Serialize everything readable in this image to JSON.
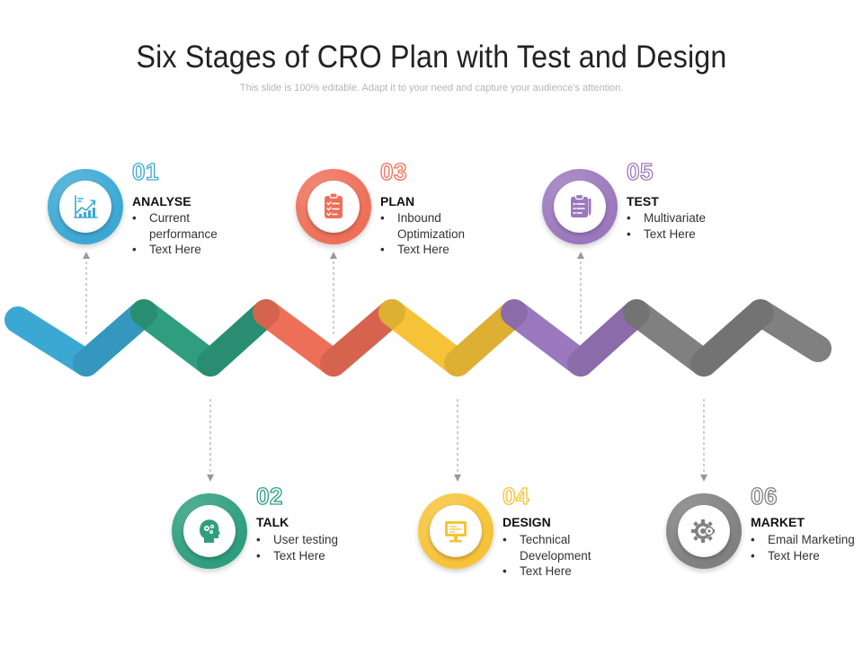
{
  "title": "Six Stages of CRO Plan with Test and Design",
  "subtitle": "This slide is 100% editable. Adapt it to your need and capture your audience's attention.",
  "stages": [
    {
      "number": "01",
      "heading": "ANALYSE",
      "icon": "growth-chart-icon",
      "color": "#3BA8D4",
      "bullets": [
        "Current performance",
        "Text Here"
      ]
    },
    {
      "number": "02",
      "heading": "TALK",
      "icon": "head-gears-icon",
      "color": "#2E9E7E",
      "bullets": [
        "User testing",
        "Text Here"
      ]
    },
    {
      "number": "03",
      "heading": "PLAN",
      "icon": "clipboard-checklist-icon",
      "color": "#EE6F57",
      "bullets": [
        "Inbound Optimization",
        "Text Here"
      ]
    },
    {
      "number": "04",
      "heading": "DESIGN",
      "icon": "monitor-icon",
      "color": "#F6C338",
      "bullets": [
        "Technical Development",
        "Text Here"
      ]
    },
    {
      "number": "05",
      "heading": "TEST",
      "icon": "clipboard-list-icon",
      "color": "#9B78BD",
      "bullets": [
        "Multivariate",
        "Text Here"
      ]
    },
    {
      "number": "06",
      "heading": "MARKET",
      "icon": "gear-target-icon",
      "color": "#808080",
      "bullets": [
        "Email Marketing",
        "Text Here"
      ]
    }
  ]
}
